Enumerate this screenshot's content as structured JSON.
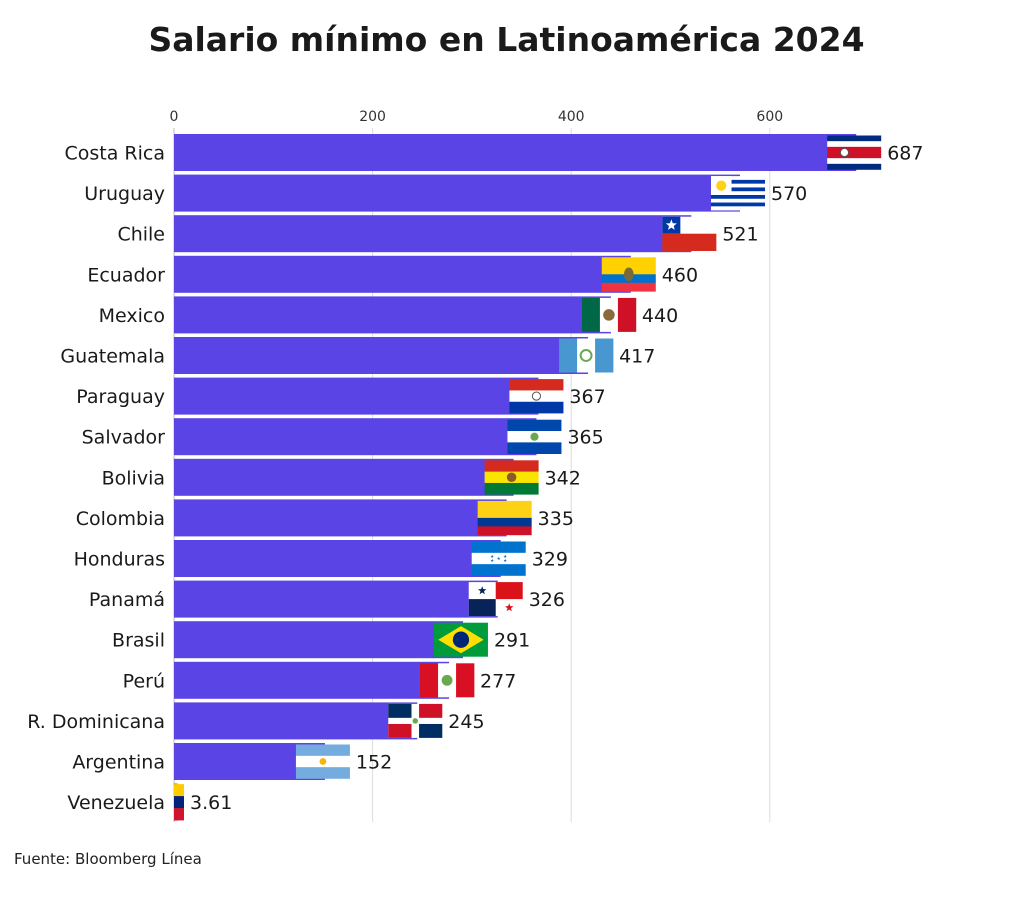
{
  "chart_data": {
    "type": "bar",
    "orientation": "horizontal",
    "title": "Salario mínimo en Latinoamérica 2024",
    "xlim": [
      0,
      700
    ],
    "xticks": [
      0,
      200,
      400,
      600
    ],
    "grid": true,
    "bar_color": "#5b44e6",
    "categories": [
      "Costa Rica",
      "Uruguay",
      "Chile",
      "Ecuador",
      "Mexico",
      "Guatemala",
      "Paraguay",
      "Salvador",
      "Bolivia",
      "Colombia",
      "Honduras",
      "Panamá",
      "Brasil",
      "Perú",
      "R. Dominicana",
      "Argentina",
      "Venezuela"
    ],
    "values": [
      687,
      570,
      521,
      460,
      440,
      417,
      367,
      365,
      342,
      335,
      329,
      326,
      291,
      277,
      245,
      152,
      3.61
    ],
    "value_labels": [
      "687",
      "570",
      "521",
      "460",
      "440",
      "417",
      "367",
      "365",
      "342",
      "335",
      "329",
      "326",
      "291",
      "277",
      "245",
      "152",
      "3.61"
    ],
    "flags": [
      "costa-rica-flag",
      "uruguay-flag",
      "chile-flag",
      "ecuador-flag",
      "mexico-flag",
      "guatemala-flag",
      "paraguay-flag",
      "el-salvador-flag",
      "bolivia-flag",
      "colombia-flag",
      "honduras-flag",
      "panama-flag",
      "brazil-flag",
      "peru-flag",
      "dominican-republic-flag",
      "argentina-flag",
      "venezuela-flag"
    ]
  },
  "source": "Fuente: Bloomberg Línea"
}
